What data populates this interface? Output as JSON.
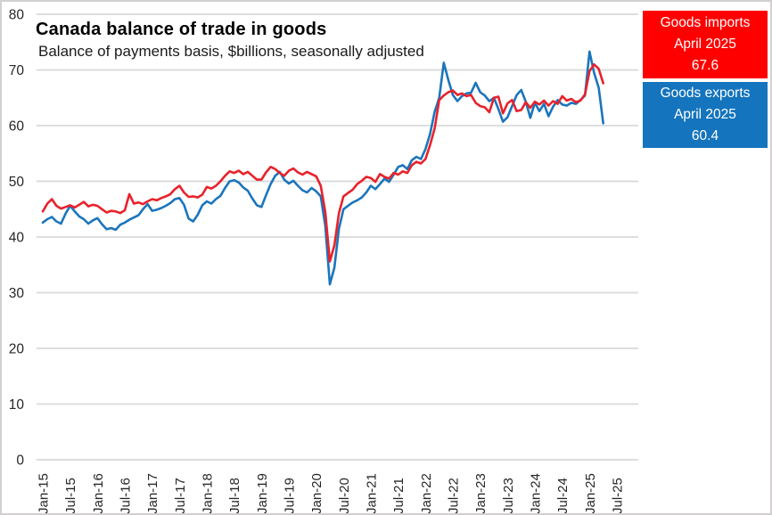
{
  "header": {
    "title": "Canada balance of trade in goods",
    "subtitle": "Balance of payments basis, $billions, seasonally adjusted"
  },
  "legend": {
    "imports": {
      "label": "Goods imports",
      "period": "April 2025",
      "value": "67.6",
      "color": "#fe0000",
      "text_color": "#ffffff"
    },
    "exports": {
      "label": "Goods exports",
      "period": "April 2025",
      "value": "60.4",
      "color": "#1474bd",
      "text_color": "#ffffff"
    }
  },
  "chart_data": {
    "type": "line",
    "title": "Canada balance of trade in goods",
    "subtitle": "Balance of payments basis, $billions, seasonally adjusted",
    "unit": "$billions",
    "frequency": "monthly",
    "x_start": "Jan-2015",
    "x_end": "Apr-2025",
    "x_tick_labels": [
      "Jan-15",
      "Jul-15",
      "Jan-16",
      "Jul-16",
      "Jan-17",
      "Jul-17",
      "Jan-18",
      "Jul-18",
      "Jan-19",
      "Jul-19",
      "Jan-20",
      "Jul-20",
      "Jan-21",
      "Jul-21",
      "Jan-22",
      "Jul-22",
      "Jan-23",
      "Jul-23",
      "Jan-24",
      "Jul-24",
      "Jan-25",
      "Jul-25"
    ],
    "x_tick_interval_months": 6,
    "y_ticks": [
      0,
      10,
      20,
      30,
      40,
      50,
      60,
      70,
      80
    ],
    "ylim": [
      0,
      80
    ],
    "grid": "horizontal",
    "grid_color": "#d9d9d9",
    "legend_position": "top-right",
    "series": [
      {
        "name": "Goods exports",
        "color": "#1b75bc",
        "values": [
          42.6,
          43.2,
          43.6,
          42.8,
          42.4,
          44.2,
          45.6,
          44.6,
          43.7,
          43.2,
          42.4,
          43.0,
          43.4,
          42.3,
          41.4,
          41.6,
          41.3,
          42.2,
          42.6,
          43.1,
          43.5,
          43.9,
          45.0,
          45.9,
          44.7,
          44.9,
          45.2,
          45.6,
          46.1,
          46.8,
          47.0,
          45.8,
          43.3,
          42.8,
          44.0,
          45.7,
          46.4,
          46.0,
          46.8,
          47.4,
          48.8,
          50.0,
          50.2,
          49.8,
          48.9,
          48.3,
          46.9,
          45.7,
          45.4,
          47.5,
          49.5,
          51.0,
          51.7,
          50.3,
          49.6,
          50.1,
          49.2,
          48.4,
          48.0,
          48.8,
          48.2,
          47.3,
          42.0,
          31.5,
          34.5,
          41.5,
          45.0,
          45.6,
          46.2,
          46.6,
          47.1,
          48.0,
          49.2,
          48.6,
          49.5,
          50.5,
          49.9,
          51.2,
          52.6,
          52.9,
          52.2,
          53.8,
          54.4,
          54.0,
          55.8,
          58.5,
          62.5,
          65.0,
          71.3,
          68.2,
          65.5,
          64.4,
          65.3,
          65.8,
          65.9,
          67.7,
          66.0,
          65.4,
          64.4,
          65.0,
          63.0,
          60.7,
          61.5,
          63.5,
          65.5,
          66.4,
          64.3,
          61.4,
          64.1,
          62.6,
          63.9,
          61.7,
          63.4,
          64.6,
          63.8,
          63.6,
          64.1,
          63.9,
          64.6,
          65.4,
          73.3,
          69.5,
          66.8,
          60.4
        ]
      },
      {
        "name": "Goods imports",
        "color": "#e8222a",
        "values": [
          44.6,
          46.0,
          46.8,
          45.6,
          45.1,
          45.4,
          45.7,
          45.3,
          45.8,
          46.3,
          45.5,
          45.8,
          45.6,
          45.0,
          44.4,
          44.7,
          44.6,
          44.3,
          44.8,
          47.7,
          46.0,
          46.2,
          45.9,
          46.4,
          46.8,
          46.6,
          47.0,
          47.3,
          47.7,
          48.6,
          49.2,
          48.0,
          47.2,
          47.3,
          47.1,
          47.6,
          49.0,
          48.7,
          49.2,
          50.0,
          51.0,
          51.8,
          51.5,
          51.9,
          51.3,
          51.7,
          51.0,
          50.3,
          50.3,
          51.6,
          52.6,
          52.2,
          51.5,
          51.0,
          51.9,
          52.3,
          51.6,
          51.2,
          51.7,
          51.3,
          50.9,
          49.2,
          44.5,
          35.6,
          38.5,
          44.3,
          47.3,
          47.9,
          48.5,
          49.5,
          50.1,
          50.8,
          50.6,
          49.9,
          51.3,
          50.8,
          50.5,
          51.5,
          51.2,
          51.8,
          51.5,
          52.9,
          53.5,
          53.2,
          54.0,
          56.5,
          59.5,
          64.6,
          65.4,
          66.0,
          66.3,
          65.5,
          65.8,
          65.3,
          65.5,
          64.1,
          63.5,
          63.3,
          62.4,
          65.0,
          65.2,
          62.2,
          64.0,
          64.6,
          62.6,
          62.8,
          64.2,
          63.2,
          64.3,
          63.8,
          64.5,
          63.6,
          64.4,
          63.9,
          65.3,
          64.5,
          64.8,
          64.2,
          64.5,
          65.6,
          69.8,
          71.0,
          70.2,
          67.6
        ]
      }
    ],
    "last_point_annotations": {
      "Goods imports": "April 2025: 67.6",
      "Goods exports": "April 2025: 60.4"
    }
  }
}
